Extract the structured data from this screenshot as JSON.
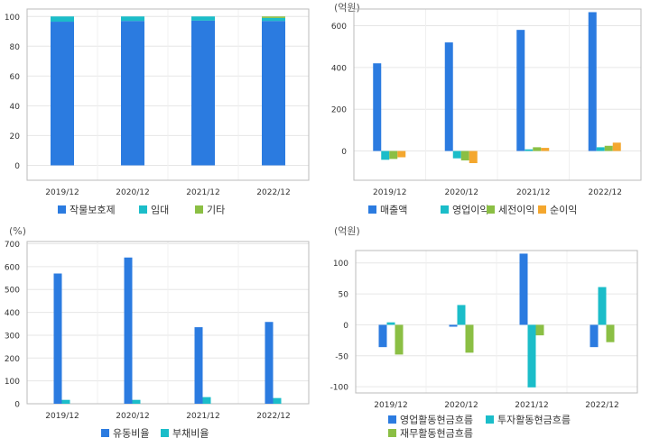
{
  "charts": [
    {
      "type": "bar",
      "stacked": true,
      "unit": "",
      "categories": [
        "2019/12",
        "2020/12",
        "2021/12",
        "2022/12"
      ],
      "ylim": [
        -10,
        105
      ],
      "yticks": [
        0,
        20,
        40,
        60,
        80,
        100
      ],
      "legend_position": "bottom",
      "series": [
        {
          "name": "작물보호제",
          "color": "#2b7be0",
          "values": [
            96.5,
            97.0,
            97.2,
            97.0
          ]
        },
        {
          "name": "임대",
          "color": "#1bbdc9",
          "values": [
            3.5,
            3.0,
            2.8,
            2.0
          ]
        },
        {
          "name": "기타",
          "color": "#8bbf44",
          "values": [
            0,
            0,
            0,
            1.0
          ]
        }
      ]
    },
    {
      "type": "bar",
      "unit": "(억원)",
      "categories": [
        "2019/12",
        "2020/12",
        "2021/12",
        "2022/12"
      ],
      "ylim": [
        -140,
        680
      ],
      "yticks": [
        0,
        200,
        400,
        600
      ],
      "legend_position": "bottom",
      "series": [
        {
          "name": "매출액",
          "color": "#2b7be0",
          "values": [
            420,
            520,
            580,
            665
          ]
        },
        {
          "name": "영업이익",
          "color": "#1bbdc9",
          "values": [
            -42,
            -35,
            8,
            18
          ]
        },
        {
          "name": "세전이익",
          "color": "#8bbf44",
          "values": [
            -38,
            -45,
            18,
            25
          ]
        },
        {
          "name": "순이익",
          "color": "#f4a72e",
          "values": [
            -30,
            -58,
            15,
            40
          ]
        }
      ]
    },
    {
      "type": "bar",
      "unit": "(%)",
      "categories": [
        "2019/12",
        "2020/12",
        "2021/12",
        "2022/12"
      ],
      "ylim": [
        0,
        710
      ],
      "yticks": [
        0,
        100,
        200,
        300,
        400,
        500,
        600,
        700
      ],
      "legend_position": "bottom",
      "series": [
        {
          "name": "유동비율",
          "color": "#2b7be0",
          "values": [
            570,
            640,
            335,
            358
          ]
        },
        {
          "name": "부채비율",
          "color": "#1bbdc9",
          "values": [
            17,
            17,
            29,
            25
          ]
        }
      ]
    },
    {
      "type": "bar",
      "unit": "(억원)",
      "categories": [
        "2019/12",
        "2020/12",
        "2021/12",
        "2022/12"
      ],
      "ylim": [
        -110,
        120
      ],
      "yticks": [
        -100,
        -50,
        0,
        50,
        100
      ],
      "legend_position": "bottom",
      "series": [
        {
          "name": "영업활동현금흐름",
          "color": "#2b7be0",
          "values": [
            -36,
            -3,
            115,
            -36
          ]
        },
        {
          "name": "투자활동현금흐름",
          "color": "#1bbdc9",
          "values": [
            4,
            32,
            -101,
            61
          ]
        },
        {
          "name": "재무활동현금흐름",
          "color": "#8bbf44",
          "values": [
            -48,
            -45,
            -17,
            -28
          ]
        }
      ]
    }
  ]
}
